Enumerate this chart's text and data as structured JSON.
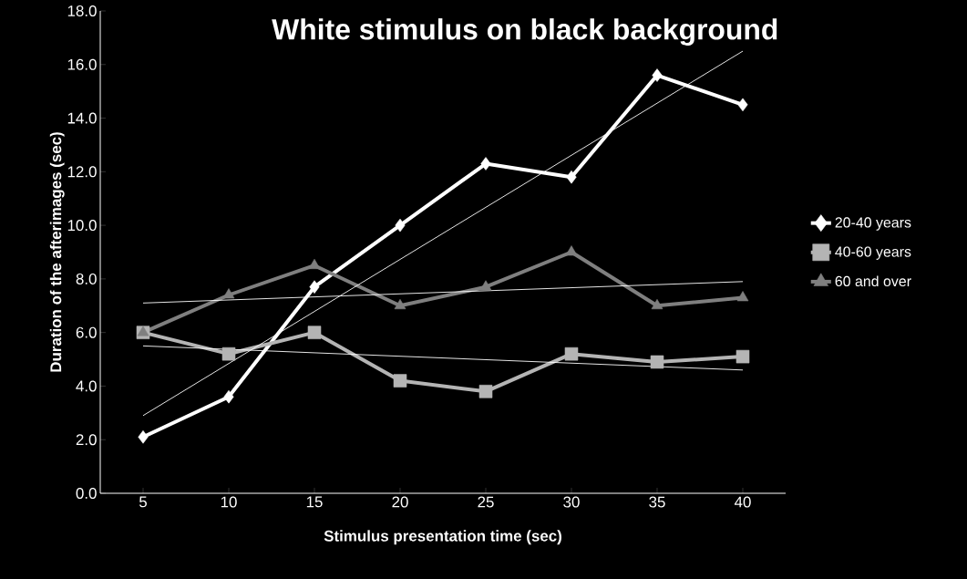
{
  "chart_data": {
    "type": "line",
    "title": "White stimulus on black background",
    "xlabel": "Stimulus presentation time (sec)",
    "ylabel": "Duration of the afterimages (sec)",
    "categories": [
      "5",
      "10",
      "15",
      "20",
      "25",
      "30",
      "35",
      "40"
    ],
    "series": [
      {
        "name": "20-40 years",
        "color": "#ffffff",
        "marker": "diamond",
        "values": [
          2.1,
          3.6,
          7.7,
          10.0,
          12.3,
          11.8,
          15.6,
          14.5
        ]
      },
      {
        "name": "40-60 years",
        "color": "#b4b4b4",
        "marker": "square",
        "values": [
          6.0,
          5.2,
          6.0,
          4.2,
          3.8,
          5.2,
          4.9,
          5.1
        ]
      },
      {
        "name": "60 and over",
        "color": "#7f7f7f",
        "marker": "triangle",
        "values": [
          6.0,
          7.4,
          8.5,
          7.0,
          7.7,
          9.0,
          7.0,
          7.3
        ]
      },
      {
        "type": "line",
        "color": "#ffffff",
        "marker": "none",
        "x": [
          "5",
          "40"
        ],
        "values": [
          2.9,
          16.5
        ]
      },
      {
        "type": "line",
        "color": "#ffffff",
        "marker": "none",
        "x": [
          "5",
          "40"
        ],
        "values": [
          5.5,
          4.6
        ]
      },
      {
        "type": "line",
        "color": "#ffffff",
        "marker": "none",
        "x": [
          "5",
          "40"
        ],
        "values": [
          7.1,
          7.9
        ]
      }
    ],
    "ylim": [
      0,
      18
    ],
    "yticks": [
      {
        "value": 0,
        "label": "0.0"
      },
      {
        "value": 2,
        "label": "2.0"
      },
      {
        "value": 4,
        "label": "4.0"
      },
      {
        "value": 6,
        "label": "6.0"
      },
      {
        "value": 8,
        "label": "8.0"
      },
      {
        "value": 10,
        "label": "10.0"
      },
      {
        "value": 12,
        "label": "12.0"
      },
      {
        "value": 14,
        "label": "14.0"
      },
      {
        "value": 16,
        "label": "16.0"
      },
      {
        "value": 18,
        "label": "18.0"
      }
    ],
    "grid": false,
    "legend": "right"
  }
}
